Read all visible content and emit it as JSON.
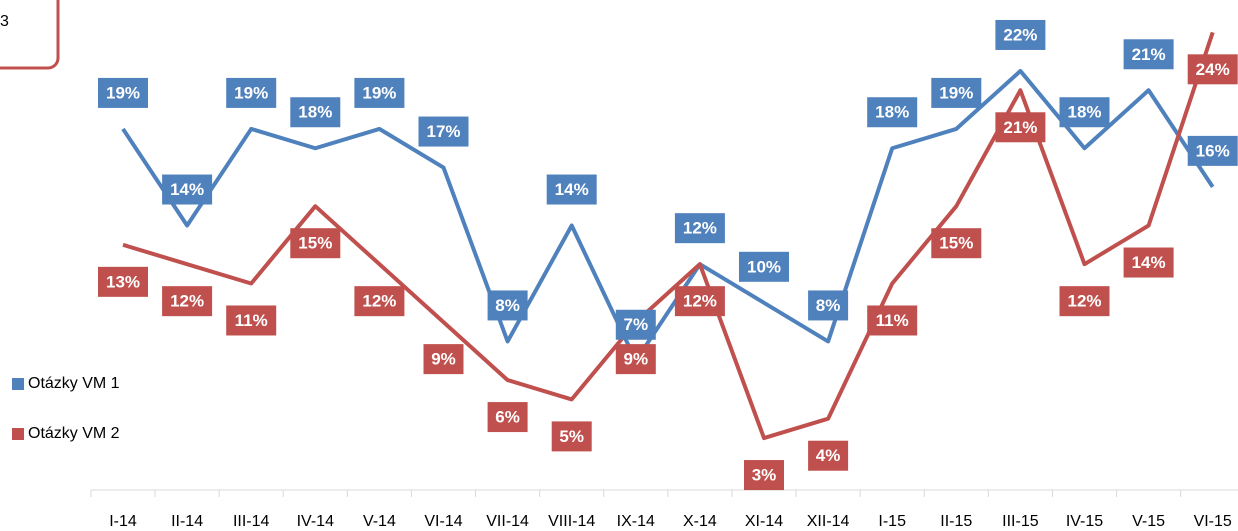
{
  "chart_data": {
    "type": "line",
    "annotation": "3",
    "categories": [
      "I-14",
      "II-14",
      "III-14",
      "IV-14",
      "V-14",
      "VI-14",
      "VII-14",
      "VIII-14",
      "IX-14",
      "X-14",
      "XI-14",
      "XII-14",
      "I-15",
      "II-15",
      "III-15",
      "IV-15",
      "V-15",
      "VI-15"
    ],
    "series": [
      {
        "name": "Otázky VM 1",
        "color": "#4f81bd",
        "values": [
          19,
          14,
          19,
          18,
          19,
          17,
          8,
          14,
          7,
          12,
          10,
          8,
          18,
          19,
          22,
          18,
          21,
          16
        ],
        "value_labels": [
          "19%",
          "14%",
          "19%",
          "18%",
          "19%",
          "17%",
          "8%",
          "14%",
          "7%",
          "12%",
          "10%",
          "8%",
          "18%",
          "19%",
          "22%",
          "18%",
          "21%",
          "16%"
        ]
      },
      {
        "name": "Otázky VM 2",
        "color": "#c0504d",
        "values": [
          13,
          12,
          11,
          15,
          12,
          9,
          6,
          5,
          9,
          12,
          3,
          4,
          11,
          15,
          21,
          12,
          14,
          24
        ],
        "value_labels": [
          "13%",
          "12%",
          "11%",
          "15%",
          "12%",
          "9%",
          "6%",
          "5%",
          "9%",
          "12%",
          "3%",
          "4%",
          "11%",
          "15%",
          "21%",
          "12%",
          "14%",
          "24%"
        ]
      }
    ],
    "ylim": [
      0,
      25
    ]
  }
}
